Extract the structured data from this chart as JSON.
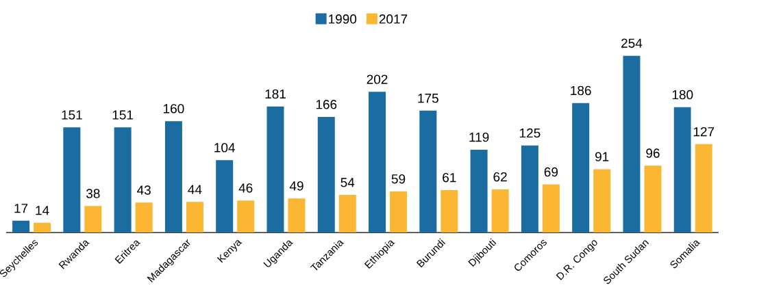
{
  "chart_data": {
    "type": "bar",
    "categories": [
      "Seychelles",
      "Rwanda",
      "Eritrea",
      "Madagascar",
      "Kenya",
      "Uganda",
      "Tanzania",
      "Ethiopia",
      "Burundi",
      "Djibouti",
      "Comoros",
      "D.R. Congo",
      "South Sudan",
      "Somalia"
    ],
    "series": [
      {
        "name": "1990",
        "color": "#1b6da1",
        "values": [
          17,
          151,
          151,
          160,
          104,
          181,
          166,
          202,
          175,
          119,
          125,
          186,
          254,
          180
        ]
      },
      {
        "name": "2017",
        "color": "#fbb634",
        "values": [
          14,
          38,
          43,
          44,
          46,
          49,
          54,
          59,
          61,
          62,
          69,
          91,
          96,
          127
        ]
      }
    ],
    "data_labels": true,
    "legend": "top"
  }
}
